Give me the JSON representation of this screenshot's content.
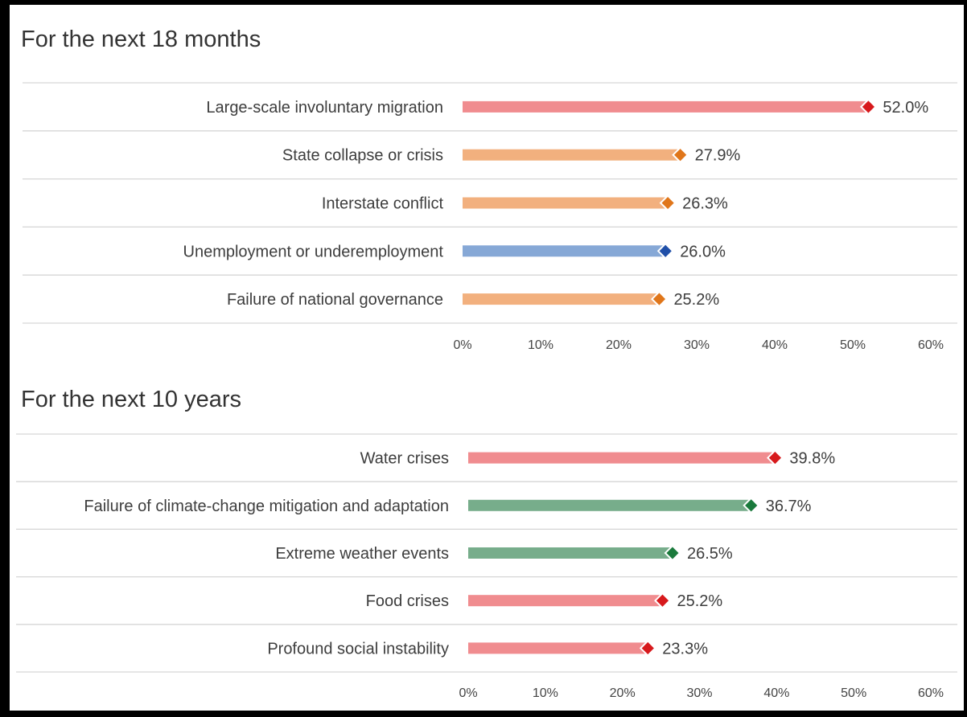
{
  "colors": {
    "pink_bar": "#f08c8f",
    "orange_bar": "#f2b07e",
    "blue_bar": "#86a8d6",
    "green_bar": "#77ad8b",
    "red_marker": "#d7191c",
    "orange_marker": "#e0761a",
    "blue_marker": "#1f4fa8",
    "green_marker": "#1a7a3c",
    "rule": "#d6d6d6"
  },
  "chart_data": [
    {
      "type": "bar",
      "orientation": "horizontal",
      "title": "For the next 18 months",
      "xlim": [
        0,
        60
      ],
      "xticks": [
        "0%",
        "10%",
        "20%",
        "30%",
        "40%",
        "50%",
        "60%"
      ],
      "categories": [
        "Large-scale involuntary migration",
        "State collapse or crisis",
        "Interstate conflict",
        "Unemployment or underemployment",
        "Failure of national governance"
      ],
      "values": [
        52.0,
        27.9,
        26.3,
        26.0,
        25.2
      ],
      "value_labels": [
        "52.0%",
        "27.9%",
        "26.3%",
        "26.0%",
        "25.2%"
      ],
      "bar_colors": [
        "pink_bar",
        "orange_bar",
        "orange_bar",
        "blue_bar",
        "orange_bar"
      ],
      "marker_colors": [
        "red_marker",
        "orange_marker",
        "orange_marker",
        "blue_marker",
        "orange_marker"
      ],
      "grid": false
    },
    {
      "type": "bar",
      "orientation": "horizontal",
      "title": "For the next 10 years",
      "xlim": [
        0,
        60
      ],
      "xticks": [
        "0%",
        "10%",
        "20%",
        "30%",
        "40%",
        "50%",
        "60%"
      ],
      "categories": [
        "Water crises",
        "Failure of climate-change mitigation and adaptation",
        "Extreme weather events",
        "Food crises",
        "Profound social instability"
      ],
      "values": [
        39.8,
        36.7,
        26.5,
        25.2,
        23.3
      ],
      "value_labels": [
        "39.8%",
        "36.7%",
        "26.5%",
        "25.2%",
        "23.3%"
      ],
      "bar_colors": [
        "pink_bar",
        "green_bar",
        "green_bar",
        "pink_bar",
        "pink_bar"
      ],
      "marker_colors": [
        "red_marker",
        "green_marker",
        "green_marker",
        "red_marker",
        "red_marker"
      ],
      "grid": false
    }
  ]
}
